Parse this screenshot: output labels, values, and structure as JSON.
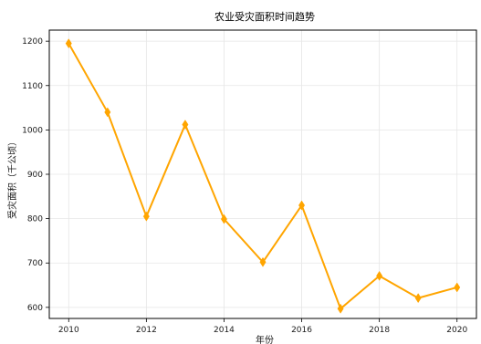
{
  "chart_data": {
    "type": "line",
    "title": "农业受灾面积时间趋势",
    "xlabel": "年份",
    "ylabel": "受灾面积（千公顷）",
    "x": [
      2010,
      2011,
      2012,
      2013,
      2014,
      2015,
      2016,
      2017,
      2018,
      2019,
      2020
    ],
    "series": [
      {
        "values": [
          1195,
          1040,
          805,
          1012,
          799,
          702,
          830,
          597,
          671,
          621,
          645
        ],
        "color": "#ffa500",
        "marker": "diamond"
      }
    ],
    "xticks": [
      2010,
      2012,
      2014,
      2016,
      2018,
      2020
    ],
    "yticks": [
      600,
      700,
      800,
      900,
      1000,
      1100,
      1200
    ],
    "xlim": [
      2009.5,
      2020.5
    ],
    "ylim": [
      575,
      1225
    ],
    "grid": true,
    "legend": false
  }
}
